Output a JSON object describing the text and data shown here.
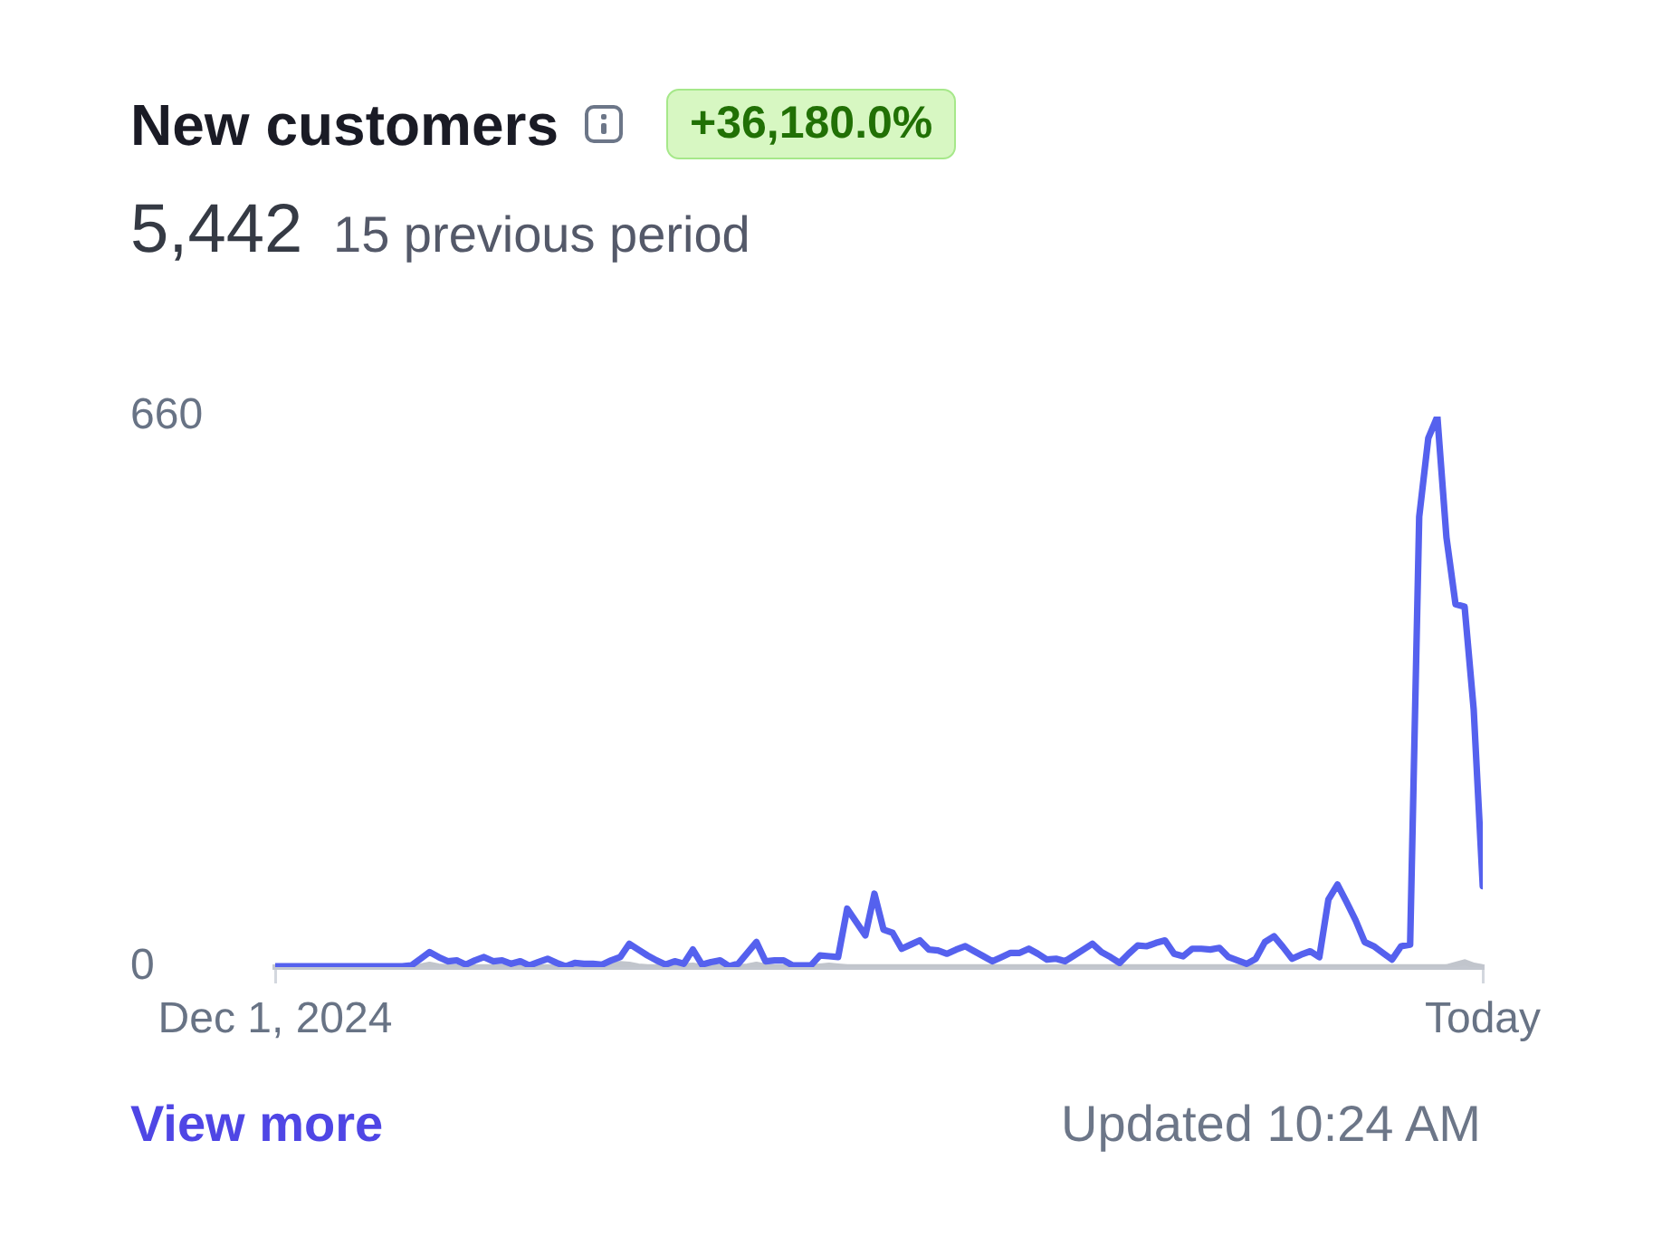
{
  "chart_data": {
    "type": "line",
    "title": "New customers",
    "subtitle": "5,442",
    "annotations": [
      "+36,180.0%",
      "15 previous period",
      "View more",
      "Updated 10:24 AM"
    ],
    "categories": [
      "Dec 1, 2024",
      null,
      null,
      null,
      null,
      null,
      null,
      null,
      null,
      null,
      null,
      null,
      null,
      null,
      null,
      null,
      null,
      null,
      null,
      null,
      null,
      null,
      null,
      null,
      null,
      null,
      null,
      null,
      null,
      null,
      null,
      null,
      null,
      null,
      null,
      null,
      null,
      null,
      null,
      null,
      null,
      null,
      null,
      null,
      null,
      null,
      null,
      null,
      null,
      null,
      null,
      null,
      null,
      null,
      null,
      null,
      null,
      null,
      null,
      null,
      null,
      null,
      null,
      null,
      null,
      null,
      null,
      null,
      null,
      null,
      null,
      null,
      null,
      null,
      null,
      null,
      null,
      null,
      null,
      null,
      null,
      null,
      null,
      null,
      null,
      null,
      null,
      null,
      null,
      null,
      null,
      null,
      null,
      null,
      null,
      null,
      null,
      null,
      null,
      null,
      null,
      null,
      null,
      null,
      null,
      null,
      null,
      null,
      null,
      null,
      null,
      null,
      null,
      null,
      null,
      null,
      null,
      null,
      null,
      null,
      null,
      null,
      null,
      null,
      null,
      null,
      null,
      null,
      null,
      null,
      null,
      null,
      null,
      "Today"
    ],
    "ylim": [
      0,
      660
    ],
    "yticks": [
      0,
      660
    ],
    "series": [
      {
        "color": "#5561ee",
        "values": [
          1,
          1,
          1,
          1,
          1,
          1,
          1,
          1,
          1,
          1,
          1,
          1,
          1,
          1,
          1,
          2,
          10,
          18,
          12,
          7,
          8,
          3,
          8,
          12,
          7,
          8,
          4,
          7,
          2,
          6,
          10,
          5,
          1,
          5,
          4,
          4,
          3,
          8,
          12,
          28,
          21,
          14,
          8,
          3,
          7,
          4,
          21,
          3,
          6,
          8,
          1,
          4,
          17,
          30,
          7,
          8,
          8,
          2,
          2,
          2,
          14,
          13,
          12,
          70,
          54,
          38,
          88,
          45,
          41,
          22,
          27,
          32,
          21,
          20,
          16,
          21,
          25,
          19,
          13,
          7,
          12,
          17,
          17,
          22,
          16,
          9,
          10,
          7,
          14,
          21,
          28,
          18,
          12,
          5,
          16,
          26,
          25,
          29,
          32,
          16,
          13,
          22,
          22,
          21,
          23,
          12,
          8,
          4,
          10,
          30,
          37,
          24,
          10,
          15,
          19,
          12,
          81,
          99,
          78,
          56,
          30,
          25,
          17,
          9,
          25,
          27,
          540,
          634,
          660,
          515,
          435,
          432,
          309,
          97
        ]
      },
      {
        "color": "#c1c5cc",
        "values": [
          0,
          0,
          0,
          0,
          0,
          0,
          0,
          0,
          0,
          0,
          0,
          0,
          0,
          0,
          0,
          0,
          1,
          3,
          1,
          0,
          0,
          0,
          0,
          0,
          0,
          0,
          0,
          0,
          0,
          0,
          0,
          0,
          0,
          0,
          0,
          0,
          1,
          3,
          4,
          3,
          1,
          0,
          0,
          0,
          0,
          1,
          2,
          0,
          0,
          0,
          0,
          0,
          1,
          3,
          1,
          0,
          0,
          0,
          0,
          0,
          1,
          2,
          1,
          0,
          0,
          0,
          0,
          0,
          0,
          0,
          0,
          0,
          0,
          0,
          0,
          0,
          0,
          0,
          0,
          0,
          0,
          0,
          0,
          0,
          0,
          0,
          0,
          0,
          0,
          0,
          0,
          0,
          0,
          0,
          0,
          0,
          0,
          0,
          0,
          0,
          0,
          0,
          0,
          0,
          0,
          0,
          0,
          0,
          0,
          0,
          0,
          0,
          0,
          0,
          0,
          0,
          0,
          0,
          0,
          0,
          0,
          0,
          0,
          0,
          0,
          0,
          0,
          0,
          0,
          0,
          3,
          6,
          2,
          0
        ]
      }
    ]
  }
}
